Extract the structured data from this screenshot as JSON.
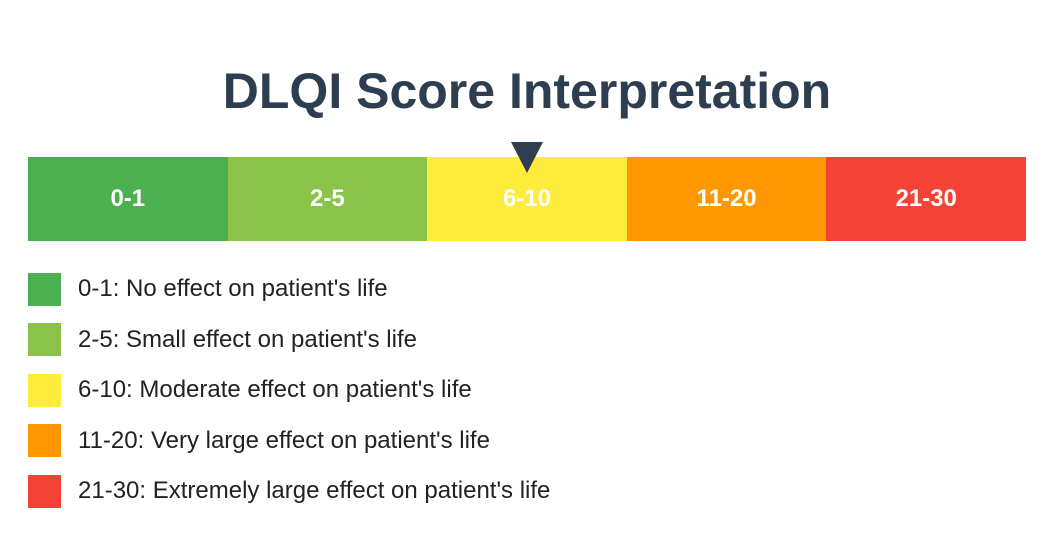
{
  "title": "DLQI Score Interpretation",
  "scale": {
    "segments": [
      {
        "label": "0-1",
        "color": "#4caf50"
      },
      {
        "label": "2-5",
        "color": "#8bc34a"
      },
      {
        "label": "6-10",
        "color": "#ffeb3b"
      },
      {
        "label": "11-20",
        "color": "#ff9800"
      },
      {
        "label": "21-30",
        "color": "#f44336"
      }
    ],
    "pointer": {
      "segment_index": 2,
      "icon": "triangle-down-icon",
      "color": "#2c3e50"
    }
  },
  "legend": {
    "items": [
      {
        "label": "0-1: No effect on patient's life",
        "color": "#4caf50"
      },
      {
        "label": "2-5: Small effect on patient's life",
        "color": "#8bc34a"
      },
      {
        "label": "6-10: Moderate effect on patient's life",
        "color": "#ffeb3b"
      },
      {
        "label": "11-20: Very large effect on patient's life",
        "color": "#ff9800"
      },
      {
        "label": "21-30: Extremely large effect on patient's life",
        "color": "#f44336"
      }
    ]
  }
}
